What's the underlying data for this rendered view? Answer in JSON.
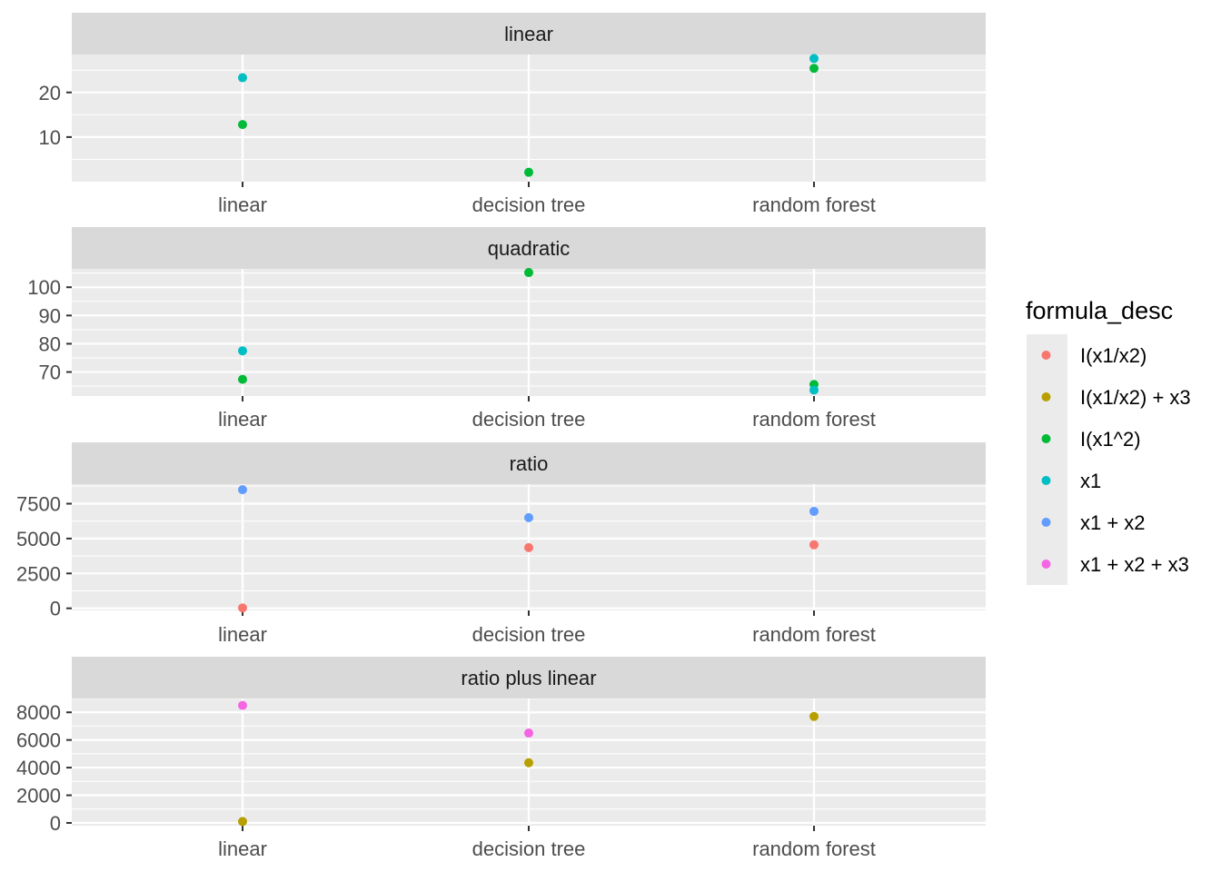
{
  "chart_data": {
    "type": "scatter",
    "facet_layout": "stacked vertically, free y scales",
    "categories": [
      "linear",
      "decision tree",
      "random forest"
    ],
    "legend": {
      "title": "formula_desc",
      "placement": "right",
      "entries": [
        {
          "label": "I(x1/x2)",
          "color": "#F8766D"
        },
        {
          "label": "I(x1/x2) + x3",
          "color": "#B79F00"
        },
        {
          "label": "I(x1^2)",
          "color": "#00BA38"
        },
        {
          "label": "x1",
          "color": "#00BFC4"
        },
        {
          "label": "x1 + x2",
          "color": "#619CFF"
        },
        {
          "label": "x1 + x2 + x3",
          "color": "#F564E3"
        }
      ]
    },
    "panels": [
      {
        "title": "linear",
        "ylim": [
          0,
          28.5
        ],
        "yticks": [
          10,
          20
        ],
        "ytick_labels": [
          "10",
          "20"
        ],
        "minor_yticks": [
          5,
          15,
          25
        ],
        "points": [
          {
            "category": "linear",
            "series": "x1",
            "y": 23.3
          },
          {
            "category": "linear",
            "series": "I(x1^2)",
            "y": 12.8
          },
          {
            "category": "decision tree",
            "series": "I(x1^2)",
            "y": 2.1
          },
          {
            "category": "random forest",
            "series": "x1",
            "y": 27.6
          },
          {
            "category": "random forest",
            "series": "I(x1^2)",
            "y": 25.4
          }
        ]
      },
      {
        "title": "quadratic",
        "ylim": [
          61.5,
          106.5
        ],
        "yticks": [
          70,
          80,
          90,
          100
        ],
        "ytick_labels": [
          "70",
          "80",
          "90",
          "100"
        ],
        "minor_yticks": [
          65,
          75,
          85,
          95,
          105
        ],
        "points": [
          {
            "category": "linear",
            "series": "x1",
            "y": 77.5
          },
          {
            "category": "linear",
            "series": "I(x1^2)",
            "y": 67.4
          },
          {
            "category": "decision tree",
            "series": "I(x1^2)",
            "y": 105.2
          },
          {
            "category": "random forest",
            "series": "I(x1^2)",
            "y": 65.6
          },
          {
            "category": "random forest",
            "series": "x1",
            "y": 63.6
          }
        ]
      },
      {
        "title": "ratio",
        "ylim": [
          -150,
          8900
        ],
        "yticks": [
          0,
          2500,
          5000,
          7500
        ],
        "ytick_labels": [
          "0",
          "2500",
          "5000",
          "7500"
        ],
        "minor_yticks": [
          1250,
          3750,
          6250,
          8750
        ],
        "points": [
          {
            "category": "linear",
            "series": "x1 + x2",
            "y": 8500
          },
          {
            "category": "linear",
            "series": "I(x1/x2)",
            "y": 30
          },
          {
            "category": "decision tree",
            "series": "x1 + x2",
            "y": 6500
          },
          {
            "category": "decision tree",
            "series": "I(x1/x2)",
            "y": 4350
          },
          {
            "category": "random forest",
            "series": "x1 + x2",
            "y": 6950
          },
          {
            "category": "random forest",
            "series": "I(x1/x2)",
            "y": 4550
          }
        ]
      },
      {
        "title": "ratio plus linear",
        "ylim": [
          -200,
          9000
        ],
        "yticks": [
          0,
          2000,
          4000,
          6000,
          8000
        ],
        "ytick_labels": [
          "0",
          "2000",
          "4000",
          "6000",
          "8000"
        ],
        "minor_yticks": [
          1000,
          3000,
          5000,
          7000,
          9000
        ],
        "points": [
          {
            "category": "linear",
            "series": "x1 + x2 + x3",
            "y": 8500
          },
          {
            "category": "linear",
            "series": "I(x1/x2) + x3",
            "y": 100
          },
          {
            "category": "decision tree",
            "series": "x1 + x2 + x3",
            "y": 6500
          },
          {
            "category": "decision tree",
            "series": "I(x1/x2) + x3",
            "y": 4350
          },
          {
            "category": "random forest",
            "series": "I(x1/x2) + x3",
            "y": 7700
          }
        ]
      }
    ]
  }
}
